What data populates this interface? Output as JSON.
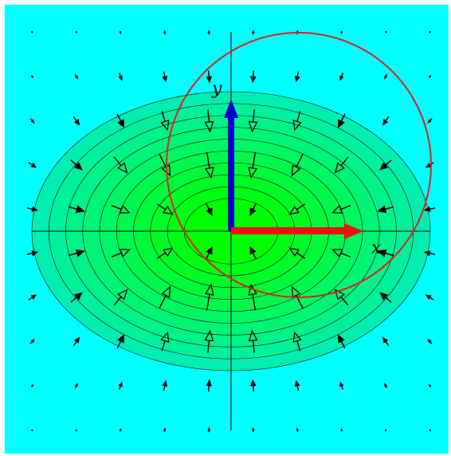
{
  "labels": {
    "x_axis": "x",
    "y_axis": "y"
  },
  "colors": {
    "background": "#00ffff",
    "contour_outer": "#00eeb0",
    "contour_inner": "#00ff00",
    "x_vector": "#ee1111",
    "y_vector": "#0000cc",
    "circle": "#dd2222",
    "arrows": "#000000"
  },
  "field": {
    "description_kind": "gradient vector field pointing toward origin",
    "grid_x": [
      -4.5,
      -3.5,
      -2.5,
      -1.5,
      -0.5,
      0.5,
      1.5,
      2.5,
      3.5,
      4.5
    ],
    "grid_y": [
      4.5,
      3.5,
      2.5,
      1.5,
      0.5,
      -0.5,
      -1.5,
      -2.5,
      -3.5,
      -4.5
    ],
    "contour_levels": 10
  }
}
